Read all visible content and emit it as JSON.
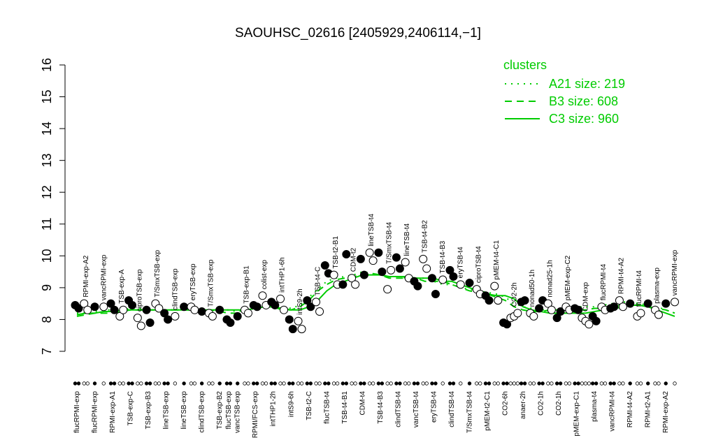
{
  "chart_data": {
    "type": "scatter",
    "title": "SAOUHSC_02616 [2405929,2406114,−1]",
    "ylim": [
      7,
      16
    ],
    "yticks": [
      7,
      8,
      9,
      10,
      11,
      12,
      13,
      14,
      15,
      16
    ],
    "legend_title": "clusters",
    "legend_position": "top-right",
    "series": [
      {
        "name": "A21 size: 219",
        "color": "#00cc00",
        "style": "dotted",
        "values": [
          8.2,
          8.2,
          8.25,
          8.3,
          8.3,
          8.3,
          8.35,
          8.35,
          8.3,
          8.3,
          8.3,
          8.3,
          8.3,
          8.35,
          8.35,
          8.3,
          8.3,
          8.3,
          8.25,
          8.3,
          8.35,
          8.4,
          8.4,
          8.4,
          8.35,
          8.45,
          8.7,
          8.95,
          9.2,
          9.3,
          9.35,
          9.4,
          9.5,
          9.45,
          9.4,
          9.35,
          9.35,
          9.3,
          9.3,
          9.3,
          9.2,
          9.1,
          9.1,
          9.0,
          8.95,
          8.9,
          8.85,
          8.8,
          8.7,
          8.5,
          8.4,
          8.35,
          8.3,
          8.3,
          8.3,
          8.35,
          8.4,
          8.4,
          8.4,
          8.45,
          8.5,
          8.55,
          8.55,
          8.5,
          8.45,
          8.4,
          8.3,
          8.2
        ]
      },
      {
        "name": "B3 size: 608",
        "color": "#00cc00",
        "style": "dashed",
        "values": [
          8.1,
          8.15,
          8.2,
          8.2,
          8.2,
          8.25,
          8.3,
          8.3,
          8.3,
          8.3,
          8.3,
          8.3,
          8.3,
          8.3,
          8.3,
          8.3,
          8.25,
          8.2,
          8.2,
          8.3,
          8.4,
          8.4,
          8.4,
          8.3,
          8.3,
          8.4,
          8.6,
          8.9,
          9.1,
          9.25,
          9.3,
          9.35,
          9.4,
          9.45,
          9.4,
          9.3,
          9.3,
          9.3,
          9.3,
          9.2,
          9.2,
          9.2,
          9.1,
          9.0,
          8.9,
          8.85,
          8.8,
          8.7,
          8.6,
          8.4,
          8.3,
          8.25,
          8.25,
          8.3,
          8.3,
          8.3,
          8.3,
          8.3,
          8.35,
          8.35,
          8.4,
          8.45,
          8.45,
          8.45,
          8.4,
          8.35,
          8.3,
          8.2
        ]
      },
      {
        "name": "C3 size: 960",
        "color": "#00cc00",
        "style": "solid",
        "values": [
          8.15,
          8.2,
          8.2,
          8.25,
          8.25,
          8.3,
          8.3,
          8.3,
          8.3,
          8.3,
          8.3,
          8.3,
          8.3,
          8.3,
          8.3,
          8.3,
          8.3,
          8.3,
          8.3,
          8.3,
          8.35,
          8.4,
          8.4,
          8.35,
          8.3,
          8.3,
          8.4,
          8.6,
          8.9,
          9.1,
          9.2,
          9.3,
          9.4,
          9.4,
          9.4,
          9.35,
          9.35,
          9.35,
          9.3,
          9.3,
          9.3,
          9.2,
          9.2,
          9.1,
          9.0,
          8.9,
          8.8,
          8.75,
          8.75,
          8.65,
          8.4,
          8.3,
          8.25,
          8.2,
          8.2,
          8.2,
          8.2,
          8.2,
          8.25,
          8.3,
          8.3,
          8.4,
          8.45,
          8.45,
          8.4,
          8.3,
          8.2,
          8.1
        ]
      }
    ],
    "groups": [
      {
        "label": "flucRPMI-exp",
        "side": "bottom",
        "filled": true,
        "values": [
          8.45,
          8.35
        ]
      },
      {
        "label": "RPMI-exp-A2",
        "side": "top",
        "filled": false,
        "values": [
          8.5,
          8.3
        ]
      },
      {
        "label": "flucRPMI-exp",
        "side": "bottom",
        "filled": true,
        "values": [
          8.4
        ]
      },
      {
        "label": "vancRPMI-exp",
        "side": "top",
        "filled": false,
        "values": [
          8.4
        ]
      },
      {
        "label": "RPMI-exp-A1",
        "side": "bottom",
        "filled": true,
        "values": [
          8.5,
          8.3
        ]
      },
      {
        "label": "TSB-exp-A",
        "side": "top",
        "filled": false,
        "values": [
          8.1,
          8.3
        ]
      },
      {
        "label": "TSB-exp-C",
        "side": "bottom",
        "filled": true,
        "values": [
          8.6,
          8.45
        ]
      },
      {
        "label": "ciproTSB-exp",
        "side": "top",
        "filled": false,
        "values": [
          8.05,
          7.8
        ]
      },
      {
        "label": "TSB-exp-B3",
        "side": "bottom",
        "filled": true,
        "values": [
          8.3,
          7.9
        ]
      },
      {
        "label": "T/SmxTSB-exp",
        "side": "top",
        "filled": false,
        "values": [
          8.5,
          8.35
        ]
      },
      {
        "label": "lineTSB-exp",
        "side": "bottom",
        "filled": true,
        "values": [
          8.2,
          8.0
        ]
      },
      {
        "label": "clindTSB-exp",
        "side": "top",
        "filled": false,
        "values": [
          8.1
        ]
      },
      {
        "label": "lineTSB-exp",
        "side": "bottom",
        "filled": true,
        "values": [
          8.4
        ]
      },
      {
        "label": "eryTSB-exp",
        "side": "top",
        "filled": false,
        "values": [
          8.4,
          8.3
        ]
      },
      {
        "label": "clindTSB-exp",
        "side": "bottom",
        "filled": true,
        "values": [
          8.25
        ]
      },
      {
        "label": "T/SmxTSB-exp",
        "side": "top",
        "filled": false,
        "values": [
          8.2,
          8.1
        ]
      },
      {
        "label": "TSB-exp-B2",
        "side": "bottom",
        "filled": true,
        "values": [
          8.3
        ]
      },
      {
        "label": "flucTSB-exp",
        "side": "bottom",
        "filled": true,
        "values": [
          8.0,
          7.9
        ]
      },
      {
        "label": "vancTSB-exp",
        "side": "bottom",
        "filled": true,
        "values": [
          8.1
        ]
      },
      {
        "label": "TSB-exp-B1",
        "side": "top",
        "filled": false,
        "values": [
          8.3,
          8.2
        ]
      },
      {
        "label": "RPMI/FCS-exp",
        "side": "bottom",
        "filled": true,
        "values": [
          8.45,
          8.4
        ]
      },
      {
        "label": "colist-exp",
        "side": "top",
        "filled": false,
        "values": [
          8.75,
          8.45
        ]
      },
      {
        "label": "intTHP1-2h",
        "side": "bottom",
        "filled": true,
        "values": [
          8.55,
          8.45
        ]
      },
      {
        "label": "intTHP1-6h",
        "side": "top",
        "filled": false,
        "values": [
          8.65,
          8.3
        ]
      },
      {
        "label": "intS9-6h",
        "side": "bottom",
        "filled": true,
        "values": [
          8.0,
          7.7
        ]
      },
      {
        "label": "intS9-2h",
        "side": "top",
        "filled": false,
        "values": [
          7.95,
          7.7
        ]
      },
      {
        "label": "TSB-t2-C",
        "side": "bottom",
        "filled": true,
        "values": [
          8.6,
          8.4
        ]
      },
      {
        "label": "TSB-t4-C",
        "side": "top",
        "filled": false,
        "values": [
          8.55,
          8.25
        ]
      },
      {
        "label": "flucTSB-t4",
        "side": "bottom",
        "filled": true,
        "values": [
          9.7,
          9.45
        ]
      },
      {
        "label": "TSB-t2-B1",
        "side": "top",
        "filled": false,
        "values": [
          9.4,
          9.1
        ]
      },
      {
        "label": "TSB-t4-B1",
        "side": "bottom",
        "filled": true,
        "values": [
          9.1,
          10.05
        ]
      },
      {
        "label": "CDM-t2",
        "side": "top",
        "filled": false,
        "values": [
          9.3,
          9.1
        ]
      },
      {
        "label": "CDM-t4",
        "side": "bottom",
        "filled": true,
        "values": [
          9.9,
          9.4
        ]
      },
      {
        "label": "lineTSB-t4",
        "side": "top",
        "filled": false,
        "values": [
          10.1,
          9.85
        ]
      },
      {
        "label": "TSB-t4-B3",
        "side": "bottom",
        "filled": true,
        "values": [
          10.1,
          9.5
        ]
      },
      {
        "label": "T/SmxTSB-t4",
        "side": "top",
        "filled": false,
        "values": [
          8.95,
          9.55
        ]
      },
      {
        "label": "clindTSB-t4",
        "side": "bottom",
        "filled": true,
        "values": [
          9.95,
          9.6
        ]
      },
      {
        "label": "lineTSB-t4",
        "side": "top",
        "filled": false,
        "values": [
          9.8,
          9.3
        ]
      },
      {
        "label": "vancTSB-t4",
        "side": "bottom",
        "filled": true,
        "values": [
          9.2,
          9.05
        ]
      },
      {
        "label": "TSB-t4-B2",
        "side": "top",
        "filled": false,
        "values": [
          9.9,
          9.6
        ]
      },
      {
        "label": "eryTSB-t4",
        "side": "bottom",
        "filled": true,
        "values": [
          9.3,
          8.8
        ]
      },
      {
        "label": "TSB-t4-B3",
        "side": "top",
        "filled": false,
        "values": [
          9.25
        ]
      },
      {
        "label": "clindTSB-t4",
        "side": "bottom",
        "filled": true,
        "values": [
          9.55,
          9.35
        ]
      },
      {
        "label": "eryTSB-t4",
        "side": "top",
        "filled": false,
        "values": [
          9.1
        ]
      },
      {
        "label": "T/SmxTSB-t4",
        "side": "bottom",
        "filled": true,
        "values": [
          9.15
        ]
      },
      {
        "label": "ciproTSB-t4",
        "side": "top",
        "filled": false,
        "values": [
          8.95,
          8.8
        ]
      },
      {
        "label": "pMEM-t2-C1",
        "side": "bottom",
        "filled": true,
        "values": [
          8.75,
          8.6
        ]
      },
      {
        "label": "pMEM-t4-C1",
        "side": "top",
        "filled": false,
        "values": [
          9.05,
          8.6
        ]
      },
      {
        "label": "CO2-6h",
        "side": "bottom",
        "filled": true,
        "values": [
          7.9,
          7.85
        ]
      },
      {
        "label": "CO2-2h",
        "side": "top",
        "filled": false,
        "values": [
          8.05,
          8.1,
          8.2
        ]
      },
      {
        "label": "anaer-2h",
        "side": "bottom",
        "filled": true,
        "values": [
          8.55,
          8.6
        ]
      },
      {
        "label": "nonad50-1h",
        "side": "top",
        "filled": false,
        "values": [
          8.2,
          8.1
        ]
      },
      {
        "label": "CO2-1h",
        "side": "bottom",
        "filled": true,
        "values": [
          8.35,
          8.6
        ]
      },
      {
        "label": "nonad25-1h",
        "side": "top",
        "filled": false,
        "values": [
          8.5,
          8.3
        ]
      },
      {
        "label": "CO2-1h",
        "side": "bottom",
        "filled": true,
        "values": [
          8.05,
          8.25
        ]
      },
      {
        "label": "pMEM-exp-C2",
        "side": "top",
        "filled": false,
        "values": [
          8.4,
          8.3
        ]
      },
      {
        "label": "pMEM-exp-C1",
        "side": "bottom",
        "filled": true,
        "values": [
          8.35,
          8.3
        ]
      },
      {
        "label": "CDM-exp",
        "side": "top",
        "filled": false,
        "values": [
          8.05,
          7.95,
          7.85
        ]
      },
      {
        "label": "plasma-t4",
        "side": "bottom",
        "filled": true,
        "values": [
          8.1,
          7.95
        ]
      },
      {
        "label": "flucRPMI-t4",
        "side": "top",
        "filled": false,
        "values": [
          8.4,
          8.3
        ]
      },
      {
        "label": "vancRPMI-t4",
        "side": "bottom",
        "filled": true,
        "values": [
          8.35,
          8.4
        ]
      },
      {
        "label": "RPMI-t4-A2",
        "side": "top",
        "filled": false,
        "values": [
          8.6,
          8.4
        ]
      },
      {
        "label": "RPMI-t4-A2",
        "side": "bottom",
        "filled": true,
        "values": [
          8.5
        ]
      },
      {
        "label": "flucRPMI-t4",
        "side": "top",
        "filled": false,
        "values": [
          8.1,
          8.2
        ]
      },
      {
        "label": "RPMI-t2-A1",
        "side": "bottom",
        "filled": true,
        "values": [
          8.5
        ]
      },
      {
        "label": "plasma-exp",
        "side": "top",
        "filled": false,
        "values": [
          8.3,
          8.15
        ]
      },
      {
        "label": "RPMI-exp-A2",
        "side": "bottom",
        "filled": true,
        "values": [
          8.5
        ]
      },
      {
        "label": "vancRPMI-exp",
        "side": "top",
        "filled": false,
        "values": [
          8.55
        ]
      }
    ]
  }
}
